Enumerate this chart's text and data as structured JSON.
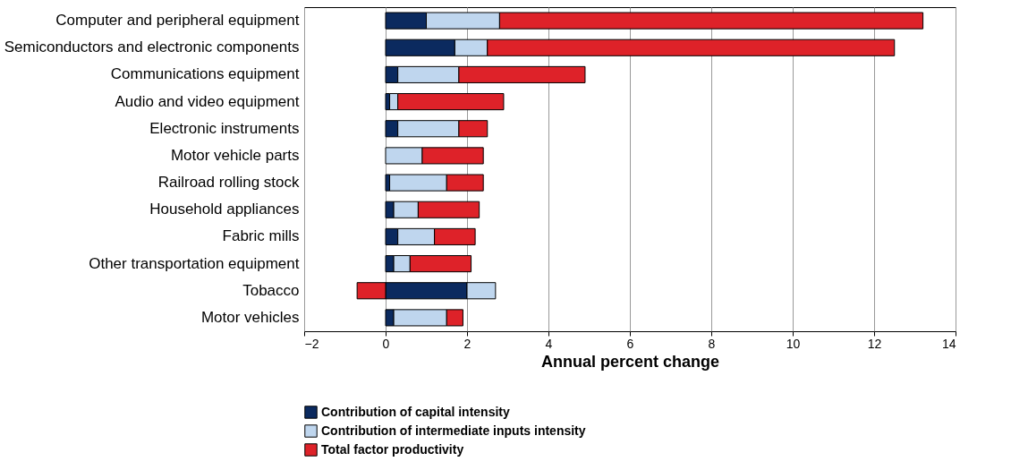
{
  "chart_data": {
    "type": "bar",
    "orientation": "horizontal",
    "stacked": true,
    "xlabel": "Annual percent change",
    "categories": [
      "Computer and peripheral equipment",
      "Semiconductors and electronic components",
      "Communications equipment",
      "Audio and video equipment",
      "Electronic instruments",
      "Motor vehicle parts",
      "Railroad rolling stock",
      "Household appliances",
      "Fabric mills",
      "Other transportation equipment",
      "Tobacco",
      "Motor vehicles"
    ],
    "series": [
      {
        "name": "Contribution of capital intensity",
        "color": "#0b2a5f",
        "values": [
          1.0,
          1.7,
          0.3,
          0.1,
          0.3,
          null,
          0.1,
          0.2,
          0.3,
          0.2,
          2.0,
          0.2
        ]
      },
      {
        "name": "Contribution of intermediate inputs intensity",
        "color": "#bfd6ee",
        "values": [
          1.8,
          0.8,
          1.5,
          0.2,
          1.5,
          0.9,
          1.4,
          0.6,
          0.9,
          0.4,
          0.7,
          1.3
        ]
      },
      {
        "name": "Total factor productivity",
        "color": "#de2229",
        "values": [
          10.4,
          10.0,
          3.1,
          2.6,
          0.7,
          1.5,
          0.9,
          1.5,
          1.0,
          1.5,
          -0.7,
          0.4
        ]
      }
    ],
    "xlim": [
      -2,
      14
    ],
    "xticks": [
      -2,
      0,
      2,
      4,
      6,
      8,
      10,
      12,
      14
    ],
    "grid": "x",
    "legend": "bottom"
  }
}
